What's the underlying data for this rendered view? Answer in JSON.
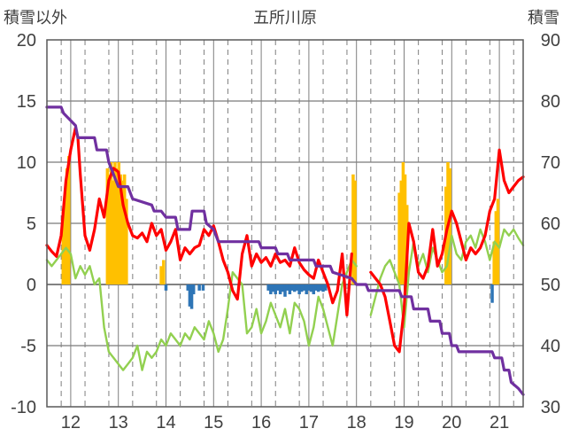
{
  "chart_data": {
    "type": "line",
    "title": "五所川原",
    "ylabel_left": "積雪以外",
    "ylabel_right": "積雪",
    "ylim_left": [
      -10,
      20
    ],
    "ylim_right": [
      30,
      90
    ],
    "x_range": [
      11.5,
      21.5
    ],
    "xticks": [
      12,
      13,
      14,
      15,
      16,
      17,
      18,
      19,
      20,
      21
    ],
    "xtick_labels": [
      "12",
      "13",
      "14",
      "15",
      "16",
      "17",
      "18",
      "19",
      "20",
      "21"
    ],
    "yticks_left": [
      -10,
      -5,
      0,
      5,
      10,
      15,
      20
    ],
    "ytick_labels_left": [
      "-10",
      "-5",
      "0",
      "5",
      "10",
      "15",
      "20"
    ],
    "yticks_right": [
      30,
      40,
      50,
      60,
      70,
      80,
      90
    ],
    "ytick_labels_right": [
      "30",
      "40",
      "50",
      "60",
      "70",
      "80",
      "90"
    ],
    "grid": {
      "vertical_dashed_at": [
        11.8,
        12.3,
        12.8,
        13.3,
        13.8,
        14.3,
        14.8,
        15.3,
        15.8,
        16.3,
        16.8,
        17.3,
        17.8,
        18.3,
        18.8,
        19.3,
        19.8,
        20.3,
        20.8,
        21.3
      ],
      "horizontal_at": [
        -5,
        0,
        5,
        10,
        15
      ]
    },
    "colors": {
      "max_temp": "#ff0000",
      "min_temp": "#92d050",
      "snow_depth": "#7030a0",
      "snowfall_bar": "#ffc000",
      "negative_bar": "#2e75b6"
    },
    "series": [
      {
        "key": "max_temp",
        "axis": "left",
        "x": [
          11.5,
          11.6,
          11.7,
          11.8,
          11.9,
          12.0,
          12.1,
          12.15,
          12.2,
          12.3,
          12.4,
          12.5,
          12.6,
          12.7,
          12.8,
          12.9,
          13.0,
          13.1,
          13.2,
          13.3,
          13.4,
          13.5,
          13.6,
          13.7,
          13.8,
          13.9,
          14.0,
          14.1,
          14.2,
          14.3,
          14.4,
          14.5,
          14.6,
          14.7,
          14.8,
          14.9,
          15.0,
          15.1,
          15.2,
          15.3,
          15.4,
          15.5,
          15.6,
          15.7,
          15.8,
          15.9,
          16.0,
          16.1,
          16.2,
          16.3,
          16.4,
          16.5,
          16.6,
          16.7,
          16.8,
          16.9,
          17.0,
          17.1,
          17.2,
          17.3,
          17.4,
          17.5,
          17.6,
          17.7,
          17.8,
          17.9
        ],
        "y": [
          3.2,
          2.7,
          2.3,
          4.0,
          8.5,
          11.0,
          12.8,
          12.0,
          9.0,
          4.0,
          2.8,
          4.5,
          7.0,
          5.5,
          8.5,
          9.5,
          9.2,
          6.5,
          5.0,
          4.0,
          3.8,
          4.2,
          3.5,
          5.0,
          4.0,
          4.5,
          2.8,
          3.5,
          4.5,
          2.0,
          3.0,
          2.5,
          3.0,
          3.2,
          4.5,
          4.0,
          4.8,
          3.5,
          2.0,
          1.0,
          -0.5,
          -1.2,
          2.5,
          4.0,
          1.5,
          2.5,
          1.8,
          2.2,
          1.5,
          2.5,
          1.8,
          2.0,
          1.5,
          3.0,
          1.8,
          1.2,
          0.8,
          0.5,
          2.0,
          1.0,
          0.0,
          -1.5,
          -0.5,
          2.5,
          -2.5,
          2.5
        ]
      },
      {
        "key": "max_temp_b",
        "axis": "left",
        "x": [
          18.3,
          18.4,
          18.5,
          18.6,
          18.7,
          18.8,
          18.9,
          19.0,
          19.1,
          19.2,
          19.3,
          19.4,
          19.5,
          19.6,
          19.7,
          19.8,
          19.9,
          20.0,
          20.1,
          20.2,
          20.3,
          20.4,
          20.5,
          20.6,
          20.7,
          20.8,
          20.9,
          21.0,
          21.1,
          21.2,
          21.3,
          21.4,
          21.5
        ],
        "y": [
          1.0,
          0.5,
          0.0,
          -1.0,
          -3.0,
          -5.0,
          -5.5,
          -2.0,
          5.0,
          3.5,
          1.0,
          0.5,
          1.5,
          4.5,
          1.5,
          2.5,
          4.5,
          6.0,
          5.0,
          3.5,
          2.0,
          3.0,
          2.5,
          3.0,
          4.0,
          6.0,
          7.0,
          11.0,
          8.5,
          7.5,
          8.0,
          8.5,
          8.8
        ]
      },
      {
        "key": "min_temp",
        "axis": "left",
        "x": [
          11.5,
          11.6,
          11.7,
          11.8,
          11.9,
          12.0,
          12.1,
          12.2,
          12.3,
          12.4,
          12.5,
          12.6,
          12.7,
          12.8,
          12.9,
          13.0,
          13.1,
          13.2,
          13.3,
          13.4,
          13.5,
          13.6,
          13.7,
          13.8,
          13.9,
          14.0,
          14.1,
          14.2,
          14.3,
          14.4,
          14.5,
          14.6,
          14.7,
          14.8,
          14.9,
          15.0,
          15.1,
          15.2,
          15.3,
          15.4,
          15.5,
          15.6,
          15.7,
          15.8,
          15.9,
          16.0,
          16.1,
          16.2,
          16.3,
          16.4,
          16.5,
          16.6,
          16.7,
          16.8,
          16.9,
          17.0,
          17.1,
          17.2,
          17.3,
          17.4,
          17.5,
          17.6,
          17.7,
          17.8,
          17.9,
          18.0
        ],
        "y": [
          2.0,
          1.5,
          2.0,
          2.5,
          3.0,
          2.5,
          0.5,
          1.5,
          0.8,
          1.5,
          0.0,
          0.5,
          -3.5,
          -5.5,
          -6.0,
          -6.5,
          -7.0,
          -6.5,
          -6.0,
          -5.0,
          -7.0,
          -5.5,
          -6.0,
          -5.5,
          -4.5,
          -5.0,
          -4.0,
          -4.5,
          -5.0,
          -4.0,
          -4.5,
          -3.5,
          -4.0,
          -4.5,
          -3.0,
          -4.0,
          -5.5,
          -4.5,
          -2.0,
          1.0,
          0.5,
          0.0,
          -4.0,
          -3.5,
          -2.0,
          -4.0,
          -3.0,
          -1.5,
          -2.5,
          -3.5,
          -2.0,
          -4.0,
          -1.5,
          -2.0,
          -3.0,
          -5.0,
          -3.5,
          -1.0,
          -2.0,
          -3.5,
          -5.0,
          -2.5,
          0.0,
          1.0,
          2.0,
          1.5
        ]
      },
      {
        "key": "min_temp_b",
        "axis": "left",
        "x": [
          18.3,
          18.4,
          18.5,
          18.6,
          18.7,
          18.8,
          18.9,
          19.0,
          19.1,
          19.2,
          19.3,
          19.4,
          19.5,
          19.6,
          19.7,
          19.8,
          19.9,
          20.0,
          20.1,
          20.2,
          20.3,
          20.4,
          20.5,
          20.6,
          20.7,
          20.8,
          20.9,
          21.0,
          21.1,
          21.2,
          21.3,
          21.4,
          21.5
        ],
        "y": [
          -2.5,
          -1.0,
          0.5,
          1.5,
          2.0,
          1.0,
          0.0,
          -3.5,
          1.0,
          3.5,
          1.5,
          2.5,
          1.0,
          3.0,
          2.0,
          1.0,
          1.5,
          4.0,
          2.5,
          2.0,
          3.5,
          4.0,
          3.0,
          4.5,
          3.5,
          2.0,
          3.5,
          3.0,
          4.5,
          4.0,
          4.5,
          3.8,
          3.2
        ]
      },
      {
        "key": "snow_depth",
        "axis": "right",
        "x": [
          11.5,
          11.8,
          11.85,
          12.1,
          12.15,
          12.5,
          12.55,
          12.75,
          12.8,
          12.9,
          13.0,
          13.2,
          13.3,
          13.7,
          13.75,
          13.9,
          14.0,
          14.2,
          14.25,
          14.5,
          14.55,
          14.8,
          14.85,
          15.0,
          15.1,
          15.3,
          15.35,
          15.95,
          16.0,
          16.3,
          16.35,
          16.55,
          16.6,
          17.1,
          17.15,
          17.45,
          17.5,
          17.9,
          18.0,
          18.2,
          18.25,
          18.9,
          18.95,
          19.15,
          19.2,
          19.5,
          19.55,
          19.75,
          19.8,
          19.95,
          20.0,
          20.1,
          20.15,
          20.85,
          20.9,
          21.05,
          21.1,
          21.2,
          21.25,
          21.4,
          21.5
        ],
        "y": [
          79,
          79,
          78,
          76,
          74,
          74,
          72,
          72,
          70,
          68,
          66,
          66,
          64,
          63,
          62,
          62,
          61,
          61,
          59,
          59,
          62,
          62,
          60,
          59,
          57,
          57,
          57,
          57,
          56,
          56,
          55,
          55,
          54,
          54,
          53,
          53,
          52,
          51,
          50,
          50,
          49,
          49,
          48,
          48,
          46,
          46,
          44,
          44,
          42,
          42,
          40,
          40,
          39,
          39,
          38,
          38,
          36,
          36,
          34,
          33,
          32
        ]
      }
    ],
    "bars": {
      "axis": "left",
      "positive": [
        {
          "x": 11.84,
          "y": 6.0
        },
        {
          "x": 11.88,
          "y": 7.0
        },
        {
          "x": 11.92,
          "y": 9.5
        },
        {
          "x": 11.96,
          "y": 10.5
        },
        {
          "x": 12.77,
          "y": 9.5
        },
        {
          "x": 12.81,
          "y": 9.0
        },
        {
          "x": 12.85,
          "y": 10.0
        },
        {
          "x": 12.89,
          "y": 8.5
        },
        {
          "x": 12.93,
          "y": 10.0
        },
        {
          "x": 12.97,
          "y": 9.5
        },
        {
          "x": 13.01,
          "y": 10.0
        },
        {
          "x": 13.05,
          "y": 9.0
        },
        {
          "x": 13.09,
          "y": 8.5
        },
        {
          "x": 13.13,
          "y": 9.0
        },
        {
          "x": 13.17,
          "y": 7.0
        },
        {
          "x": 13.9,
          "y": 1.5
        },
        {
          "x": 13.95,
          "y": 2.0
        },
        {
          "x": 17.93,
          "y": 9.0
        },
        {
          "x": 17.97,
          "y": 8.5
        },
        {
          "x": 18.9,
          "y": 7.5
        },
        {
          "x": 18.94,
          "y": 8.5
        },
        {
          "x": 18.98,
          "y": 10.0
        },
        {
          "x": 19.02,
          "y": 9.0
        },
        {
          "x": 19.06,
          "y": 6.5
        },
        {
          "x": 19.88,
          "y": 8.0
        },
        {
          "x": 19.92,
          "y": 10.0
        },
        {
          "x": 19.96,
          "y": 9.5
        },
        {
          "x": 20.89,
          "y": 3.5
        },
        {
          "x": 20.93,
          "y": 6.0
        },
        {
          "x": 20.97,
          "y": 7.0
        }
      ],
      "negative": [
        {
          "x": 14.0,
          "y": -0.5
        },
        {
          "x": 14.46,
          "y": -0.5
        },
        {
          "x": 14.5,
          "y": -1.8
        },
        {
          "x": 14.54,
          "y": -2.0
        },
        {
          "x": 14.58,
          "y": -0.8
        },
        {
          "x": 14.7,
          "y": -0.5
        },
        {
          "x": 14.78,
          "y": -0.5
        },
        {
          "x": 16.15,
          "y": -0.5
        },
        {
          "x": 16.2,
          "y": -0.8
        },
        {
          "x": 16.25,
          "y": -0.6
        },
        {
          "x": 16.3,
          "y": -0.8
        },
        {
          "x": 16.35,
          "y": -0.5
        },
        {
          "x": 16.4,
          "y": -0.8
        },
        {
          "x": 16.45,
          "y": -0.6
        },
        {
          "x": 16.5,
          "y": -1.0
        },
        {
          "x": 16.55,
          "y": -0.5
        },
        {
          "x": 16.6,
          "y": -0.8
        },
        {
          "x": 16.65,
          "y": -0.5
        },
        {
          "x": 16.7,
          "y": -0.6
        },
        {
          "x": 16.75,
          "y": -0.5
        },
        {
          "x": 16.8,
          "y": -0.8
        },
        {
          "x": 16.85,
          "y": -0.6
        },
        {
          "x": 16.9,
          "y": -0.5
        },
        {
          "x": 16.95,
          "y": -0.8
        },
        {
          "x": 17.0,
          "y": -0.5
        },
        {
          "x": 17.05,
          "y": -0.6
        },
        {
          "x": 17.1,
          "y": -0.8
        },
        {
          "x": 17.15,
          "y": -0.5
        },
        {
          "x": 17.2,
          "y": -0.6
        },
        {
          "x": 17.25,
          "y": -0.5
        },
        {
          "x": 17.3,
          "y": -0.6
        },
        {
          "x": 17.35,
          "y": -0.5
        },
        {
          "x": 20.85,
          "y": -1.5
        }
      ]
    }
  }
}
